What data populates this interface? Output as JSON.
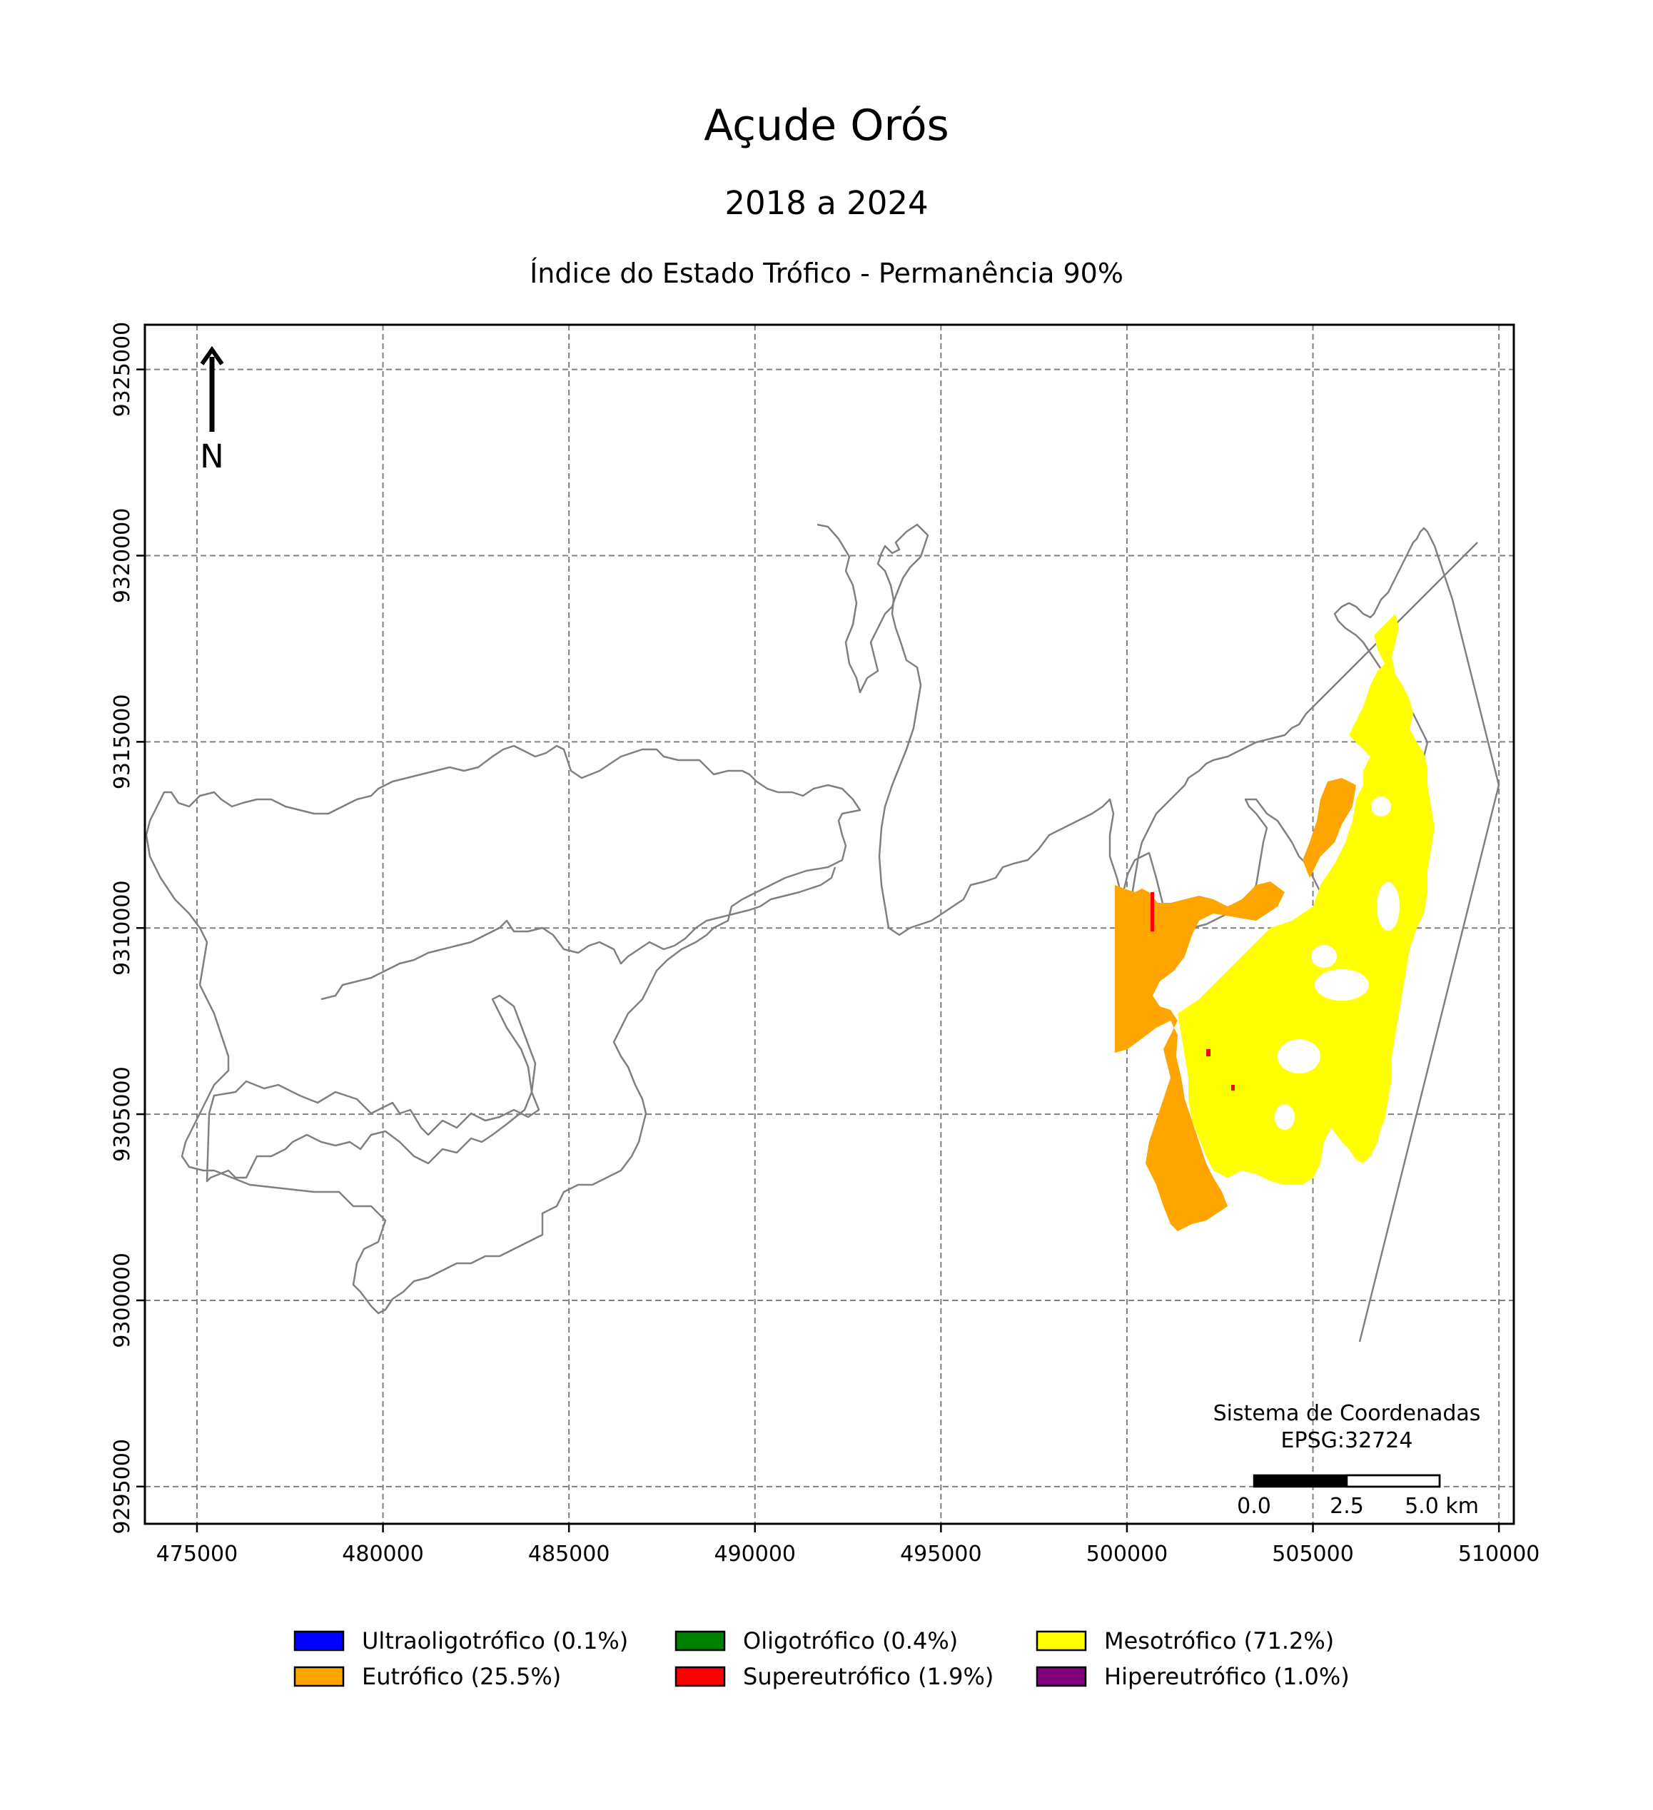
{
  "header": {
    "title": "Açude Orós",
    "subtitle": "2018 a 2024",
    "index_title": "Índice do Estado Trófico - Permanência 90%"
  },
  "map": {
    "x_axis": {
      "min": 473600,
      "max": 510400,
      "ticks": [
        "475000",
        "480000",
        "485000",
        "490000",
        "495000",
        "500000",
        "505000",
        "510000"
      ],
      "tick_values": [
        475000,
        480000,
        485000,
        490000,
        495000,
        500000,
        505000,
        510000
      ]
    },
    "y_axis": {
      "min": 9294000,
      "max": 9326200,
      "ticks": [
        "9295000",
        "9300000",
        "9305000",
        "9310000",
        "9315000",
        "9320000",
        "9325000"
      ],
      "tick_values": [
        9295000,
        9300000,
        9305000,
        9310000,
        9315000,
        9320000,
        9325000
      ]
    },
    "grid": true,
    "north_arrow": {
      "label": "N",
      "icon": "north-arrow-icon"
    },
    "crs": {
      "line1": "Sistema de Coordenadas",
      "line2": "EPSG:32724"
    },
    "scale_bar": {
      "labels": [
        "0.0",
        "2.5",
        "5.0 km"
      ],
      "segment_km": 2.5
    },
    "outline_color": "#808080"
  },
  "legend": {
    "items": [
      {
        "label": "Ultraoligotrófico (0.1%)",
        "color": "#0000ff",
        "percent": 0.1
      },
      {
        "label": "Eutrófico (25.5%)",
        "color": "#ffa500",
        "percent": 25.5
      },
      {
        "label": "Oligotrófico (0.4%)",
        "color": "#008000",
        "percent": 0.4
      },
      {
        "label": "Supereutrófico (1.9%)",
        "color": "#ff0000",
        "percent": 1.9
      },
      {
        "label": "Mesotrófico (71.2%)",
        "color": "#ffff00",
        "percent": 71.2
      },
      {
        "label": "Hipereutrófico (1.0%)",
        "color": "#800080",
        "percent": 1.0
      }
    ]
  }
}
